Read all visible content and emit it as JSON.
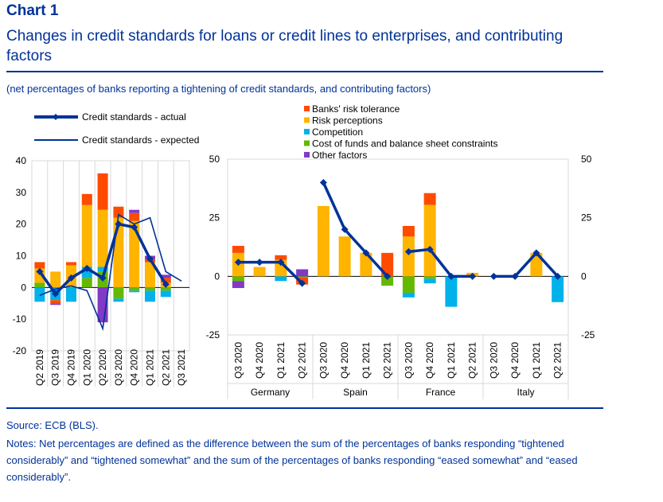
{
  "header": {
    "chart_label": "Chart 1",
    "title": "Changes in credit standards for loans or credit lines to enterprises, and contributing factors",
    "subtitle": "(net percentages of banks reporting a tightening of credit standards, and contributing factors)"
  },
  "footer": {
    "source": "Source: ECB (BLS).",
    "notes": "Notes: Net percentages are defined as the difference between the sum of the percentages of banks responding “tightened considerably” and “tightened somewhat” and the sum of the percentages of banks responding “eased somewhat” and “eased considerably”."
  },
  "colors": {
    "brand": "#003299",
    "risk_tolerance": "#ff4b00",
    "risk_perceptions": "#ffb400",
    "competition": "#00b1ea",
    "cost_of_funds": "#65b800",
    "other_factors": "#8139c6",
    "actual": "#003299",
    "expected": "#003299"
  },
  "legend": {
    "actual": "Credit standards - actual",
    "expected": "Credit standards - expected",
    "risk_tolerance": "Banks' risk tolerance",
    "risk_perceptions": "Risk perceptions",
    "competition": "Competition",
    "cost_of_funds": "Cost of funds and balance sheet constraints",
    "other_factors": "Other factors"
  },
  "chart_data": [
    {
      "type": "bar",
      "panel": "euro area",
      "stacked": true,
      "categories": [
        "Q2 2019",
        "Q3 2019",
        "Q4 2019",
        "Q1 2020",
        "Q2 2020",
        "Q3 2020",
        "Q4 2020",
        "Q1 2021",
        "Q2 2021",
        "Q3 2021"
      ],
      "ylim": [
        -20,
        40
      ],
      "yticks": [
        -20,
        -10,
        0,
        10,
        20,
        30,
        40
      ],
      "series": [
        {
          "name": "Cost of funds and balance sheet constraints",
          "key": "cost_of_funds",
          "values": [
            1.5,
            0,
            0,
            3,
            5,
            -3.5,
            -1,
            -1,
            -1,
            null
          ]
        },
        {
          "name": "Competition",
          "key": "competition",
          "values": [
            -4.5,
            -4,
            -4.5,
            3.5,
            1.5,
            -1,
            -0.5,
            -3.5,
            -2,
            null
          ]
        },
        {
          "name": "Risk perceptions",
          "key": "risk_perceptions",
          "values": [
            4.5,
            5,
            7,
            19.5,
            18,
            22,
            21,
            8,
            1.5,
            null
          ]
        },
        {
          "name": "Banks' risk tolerance",
          "key": "risk_tolerance",
          "values": [
            2,
            -1,
            1,
            3.5,
            11.5,
            3.5,
            2.5,
            1,
            1.5,
            null
          ]
        },
        {
          "name": "Other factors",
          "key": "other_factors",
          "values": [
            0,
            -0.5,
            0,
            0,
            -11,
            0,
            1,
            1,
            1,
            null
          ]
        }
      ],
      "lines": [
        {
          "name": "Credit standards - actual",
          "key": "actual",
          "values": [
            5,
            -2,
            3,
            6,
            3,
            20,
            19,
            9,
            1,
            null
          ]
        },
        {
          "name": "Credit standards - expected",
          "key": "expected",
          "values": [
            -2.5,
            -0.5,
            0.5,
            -1,
            -13,
            23,
            20,
            22,
            5,
            2
          ]
        }
      ]
    },
    {
      "type": "bar",
      "panel": "countries",
      "stacked": true,
      "groups": [
        "Germany",
        "Spain",
        "France",
        "Italy"
      ],
      "categories": [
        "Q3 2020",
        "Q4 2020",
        "Q1 2021",
        "Q2 2021"
      ],
      "ylim": [
        -25,
        50
      ],
      "yticks": [
        -25,
        0,
        25,
        50
      ],
      "countries": [
        {
          "name": "Germany",
          "series": {
            "cost_of_funds": [
              -2,
              0,
              0,
              -0.5
            ],
            "competition": [
              0,
              0,
              -2,
              0
            ],
            "risk_perceptions": [
              10,
              4,
              7,
              0
            ],
            "risk_tolerance": [
              3,
              0,
              2,
              -3
            ],
            "other_factors": [
              -3,
              0,
              0,
              3
            ]
          },
          "actual": [
            6,
            6,
            6,
            -3
          ]
        },
        {
          "name": "Spain",
          "series": {
            "cost_of_funds": [
              0,
              0,
              0,
              -4
            ],
            "competition": [
              0,
              0,
              0,
              0
            ],
            "risk_perceptions": [
              30,
              17,
              10,
              0
            ],
            "risk_tolerance": [
              0,
              0,
              0,
              10
            ],
            "other_factors": [
              0,
              0,
              0,
              0
            ]
          },
          "actual": [
            40,
            20,
            10,
            0
          ]
        },
        {
          "name": "France",
          "series": {
            "cost_of_funds": [
              -7,
              -1,
              0,
              0
            ],
            "competition": [
              -2,
              -2,
              -13,
              0
            ],
            "risk_perceptions": [
              17,
              30.5,
              0,
              1.5
            ],
            "risk_tolerance": [
              4.5,
              5,
              0,
              0
            ],
            "other_factors": [
              0,
              0,
              0,
              0
            ]
          },
          "actual": [
            10.5,
            11.5,
            0,
            0
          ]
        },
        {
          "name": "Italy",
          "series": {
            "cost_of_funds": [
              0,
              0,
              0,
              0
            ],
            "competition": [
              0,
              0,
              0,
              -11
            ],
            "risk_perceptions": [
              0,
              0,
              10,
              0
            ],
            "risk_tolerance": [
              0,
              0,
              0,
              0
            ],
            "other_factors": [
              0,
              0,
              0,
              0
            ]
          },
          "actual": [
            0,
            0,
            10,
            0
          ]
        }
      ]
    }
  ]
}
